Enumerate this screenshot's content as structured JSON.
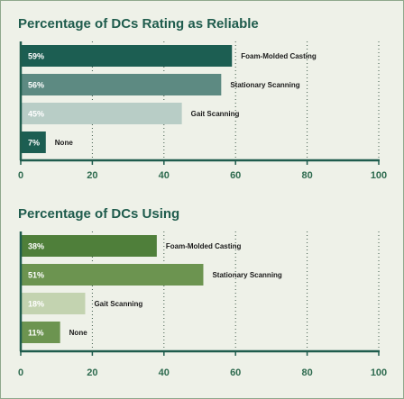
{
  "colors": {
    "title": "#1f5c4d",
    "axis": "#1f5c4d",
    "tick_text": "#2e6b4f",
    "background": "#eef1e8",
    "grid": "#3f5a4a"
  },
  "chart_data": [
    {
      "type": "bar",
      "orientation": "horizontal",
      "title": "Percentage of DCs Rating as Reliable",
      "categories": [
        "Foam-Molded Casting",
        "Stationary Scanning",
        "Gait Scanning",
        "None"
      ],
      "values": [
        59,
        56,
        45,
        7
      ],
      "value_labels": [
        "59%",
        "56%",
        "45%",
        "7%"
      ],
      "bar_colors": [
        "#1c5e52",
        "#5d8a82",
        "#b8cdc6",
        "#1c5e52"
      ],
      "value_label_colors": [
        "#ffffff",
        "#ffffff",
        "#ffffff",
        "#ffffff"
      ],
      "xlim": [
        0,
        100
      ],
      "xticks": [
        "0",
        "20",
        "40",
        "60",
        "80",
        "100"
      ],
      "xlabel": "",
      "ylabel": "",
      "grid": "vertical dotted"
    },
    {
      "type": "bar",
      "orientation": "horizontal",
      "title": "Percentage of DCs Using",
      "categories": [
        "Foam-Molded Casting",
        "Stationary Scanning",
        "Gait Scanning",
        "None"
      ],
      "values": [
        38,
        51,
        18,
        11
      ],
      "value_labels": [
        "38%",
        "51%",
        "18%",
        "11%"
      ],
      "bar_colors": [
        "#4f7f3a",
        "#6c9450",
        "#c3d3b0",
        "#6c9450"
      ],
      "value_label_colors": [
        "#ffffff",
        "#ffffff",
        "#ffffff",
        "#ffffff"
      ],
      "xlim": [
        0,
        100
      ],
      "xticks": [
        "0",
        "20",
        "40",
        "60",
        "80",
        "100"
      ],
      "xlabel": "",
      "ylabel": "",
      "grid": "vertical dotted"
    }
  ]
}
